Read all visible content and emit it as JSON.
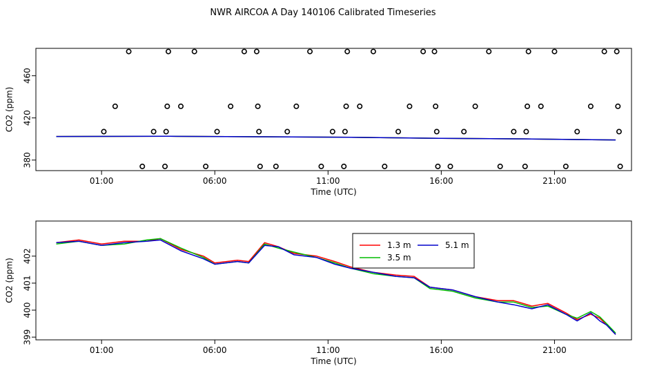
{
  "figure": {
    "title": "NWR AIRCOA A  Day 140106  Calibrated Timeseries"
  },
  "chart_data": [
    {
      "type": "scatter+line",
      "panel": "top",
      "xlabel": "Time (UTC)",
      "ylabel": "CO2 (ppm)",
      "x_unit": "hours UTC",
      "xlim": [
        -1.9,
        24.4
      ],
      "ylim": [
        370,
        486
      ],
      "x_ticks": [
        1,
        6,
        11,
        16,
        21
      ],
      "x_tick_labels": [
        "01:00",
        "06:00",
        "11:00",
        "16:00",
        "21:00"
      ],
      "y_ticks": [
        380,
        420,
        460
      ],
      "y_tick_labels": [
        "380",
        "420",
        "460"
      ],
      "calibration_points": {
        "marker": "open-circle",
        "points": [
          {
            "x": 1.1,
            "y": 407
          },
          {
            "x": 1.6,
            "y": 431
          },
          {
            "x": 2.2,
            "y": 483
          },
          {
            "x": 2.8,
            "y": 374
          },
          {
            "x": 3.3,
            "y": 407
          },
          {
            "x": 3.8,
            "y": 374
          },
          {
            "x": 3.85,
            "y": 407
          },
          {
            "x": 3.9,
            "y": 431
          },
          {
            "x": 3.95,
            "y": 483
          },
          {
            "x": 4.5,
            "y": 431
          },
          {
            "x": 5.1,
            "y": 483
          },
          {
            "x": 5.6,
            "y": 374
          },
          {
            "x": 6.1,
            "y": 407
          },
          {
            "x": 6.7,
            "y": 431
          },
          {
            "x": 7.3,
            "y": 483
          },
          {
            "x": 7.85,
            "y": 483
          },
          {
            "x": 7.9,
            "y": 431
          },
          {
            "x": 7.95,
            "y": 407
          },
          {
            "x": 8.0,
            "y": 374
          },
          {
            "x": 8.7,
            "y": 374
          },
          {
            "x": 9.2,
            "y": 407
          },
          {
            "x": 9.6,
            "y": 431
          },
          {
            "x": 10.2,
            "y": 483
          },
          {
            "x": 10.7,
            "y": 374
          },
          {
            "x": 11.2,
            "y": 407
          },
          {
            "x": 11.7,
            "y": 374
          },
          {
            "x": 11.75,
            "y": 407
          },
          {
            "x": 11.8,
            "y": 431
          },
          {
            "x": 11.85,
            "y": 483
          },
          {
            "x": 12.4,
            "y": 431
          },
          {
            "x": 13.0,
            "y": 483
          },
          {
            "x": 13.5,
            "y": 374
          },
          {
            "x": 14.1,
            "y": 407
          },
          {
            "x": 14.6,
            "y": 431
          },
          {
            "x": 15.2,
            "y": 483
          },
          {
            "x": 15.7,
            "y": 483
          },
          {
            "x": 15.75,
            "y": 431
          },
          {
            "x": 15.8,
            "y": 407
          },
          {
            "x": 15.85,
            "y": 374
          },
          {
            "x": 16.4,
            "y": 374
          },
          {
            "x": 17.0,
            "y": 407
          },
          {
            "x": 17.5,
            "y": 431
          },
          {
            "x": 18.1,
            "y": 483
          },
          {
            "x": 18.6,
            "y": 374
          },
          {
            "x": 19.2,
            "y": 407
          },
          {
            "x": 19.7,
            "y": 374
          },
          {
            "x": 19.75,
            "y": 407
          },
          {
            "x": 19.8,
            "y": 431
          },
          {
            "x": 19.85,
            "y": 483
          },
          {
            "x": 20.4,
            "y": 431
          },
          {
            "x": 21.0,
            "y": 483
          },
          {
            "x": 21.5,
            "y": 374
          },
          {
            "x": 22.0,
            "y": 407
          },
          {
            "x": 22.6,
            "y": 431
          },
          {
            "x": 23.2,
            "y": 483
          },
          {
            "x": 23.75,
            "y": 483
          },
          {
            "x": 23.8,
            "y": 431
          },
          {
            "x": 23.85,
            "y": 407
          },
          {
            "x": 23.9,
            "y": 374
          }
        ]
      },
      "series": [
        {
          "name": "1.3 m",
          "color": "#ff0000",
          "x": [
            -1.0,
            4.0,
            8.0,
            12.0,
            16.0,
            20.0,
            23.7
          ],
          "y": [
            402.4,
            402.6,
            402.1,
            401.6,
            400.6,
            400.0,
            399.1
          ]
        },
        {
          "name": "3.5 m",
          "color": "#00bb00",
          "x": [
            -1.0,
            4.0,
            8.0,
            12.0,
            16.0,
            20.0,
            23.7
          ],
          "y": [
            402.4,
            402.6,
            402.1,
            401.6,
            400.6,
            400.0,
            399.1
          ]
        },
        {
          "name": "5.1 m",
          "color": "#0000cc",
          "x": [
            -1.0,
            4.0,
            8.0,
            12.0,
            16.0,
            20.0,
            23.7
          ],
          "y": [
            402.4,
            402.6,
            402.1,
            401.6,
            400.6,
            400.0,
            399.1
          ]
        }
      ]
    },
    {
      "type": "line",
      "panel": "bottom",
      "xlabel": "Time (UTC)",
      "ylabel": "CO2 (ppm)",
      "x_unit": "hours UTC",
      "xlim": [
        -1.9,
        24.4
      ],
      "ylim": [
        398.9,
        403.3
      ],
      "x_ticks": [
        1,
        6,
        11,
        16,
        21
      ],
      "x_tick_labels": [
        "01:00",
        "06:00",
        "11:00",
        "16:00",
        "21:00"
      ],
      "y_ticks": [
        399,
        400,
        401,
        402
      ],
      "y_tick_labels": [
        "399",
        "400",
        "401",
        "402"
      ],
      "legend": {
        "placement": "top-right-center",
        "entries": [
          {
            "label": "1.3 m",
            "color": "#ff0000"
          },
          {
            "label": "5.1 m",
            "color": "#0000cc"
          },
          {
            "label": "3.5 m",
            "color": "#00bb00"
          }
        ]
      },
      "series": [
        {
          "name": "1.3 m",
          "color": "#ff0000",
          "x": [
            -1.0,
            0.0,
            1.0,
            2.0,
            3.0,
            3.6,
            4.5,
            5.5,
            6.0,
            7.0,
            7.5,
            8.2,
            8.8,
            9.5,
            10.5,
            11.3,
            12.0,
            13.0,
            14.0,
            14.8,
            15.5,
            16.5,
            17.5,
            18.5,
            19.2,
            20.0,
            20.7,
            21.5,
            22.0,
            22.6,
            23.0,
            23.3,
            23.7
          ],
          "y": [
            402.5,
            402.6,
            402.45,
            402.55,
            402.55,
            402.65,
            402.25,
            402.0,
            401.75,
            401.85,
            401.8,
            402.5,
            402.35,
            402.1,
            402.0,
            401.8,
            401.6,
            401.4,
            401.3,
            401.25,
            400.85,
            400.75,
            400.5,
            400.35,
            400.35,
            400.15,
            400.25,
            399.9,
            399.65,
            399.85,
            399.7,
            399.45,
            399.1
          ]
        },
        {
          "name": "3.5 m",
          "color": "#00bb00",
          "x": [
            -1.0,
            0.0,
            1.0,
            2.0,
            3.0,
            3.6,
            4.5,
            5.5,
            6.0,
            7.0,
            7.5,
            8.2,
            8.8,
            9.5,
            10.5,
            11.3,
            12.0,
            13.0,
            14.0,
            14.8,
            15.5,
            16.5,
            17.5,
            18.5,
            19.2,
            20.0,
            20.7,
            21.5,
            22.0,
            22.6,
            23.0,
            23.3,
            23.7
          ],
          "y": [
            402.45,
            402.55,
            402.4,
            402.45,
            402.6,
            402.65,
            402.3,
            401.95,
            401.7,
            401.8,
            401.75,
            402.45,
            402.3,
            402.15,
            401.95,
            401.75,
            401.55,
            401.35,
            401.25,
            401.2,
            400.8,
            400.7,
            400.45,
            400.3,
            400.3,
            400.1,
            400.15,
            399.85,
            399.7,
            399.95,
            399.75,
            399.5,
            399.15
          ]
        },
        {
          "name": "5.1 m",
          "color": "#0000cc",
          "x": [
            -1.0,
            0.0,
            1.0,
            2.0,
            3.0,
            3.6,
            4.5,
            5.5,
            6.0,
            7.0,
            7.5,
            8.2,
            8.8,
            9.5,
            10.5,
            11.3,
            12.0,
            13.0,
            14.0,
            14.8,
            15.5,
            16.5,
            17.5,
            18.5,
            19.2,
            20.0,
            20.7,
            21.5,
            22.0,
            22.6,
            23.0,
            23.3,
            23.7
          ],
          "y": [
            402.5,
            402.55,
            402.4,
            402.5,
            402.55,
            402.6,
            402.2,
            401.9,
            401.7,
            401.8,
            401.75,
            402.4,
            402.35,
            402.05,
            401.95,
            401.7,
            401.55,
            401.4,
            401.25,
            401.2,
            400.85,
            400.75,
            400.5,
            400.3,
            400.2,
            400.05,
            400.2,
            399.85,
            399.6,
            399.9,
            399.6,
            399.45,
            399.1
          ]
        }
      ]
    }
  ]
}
